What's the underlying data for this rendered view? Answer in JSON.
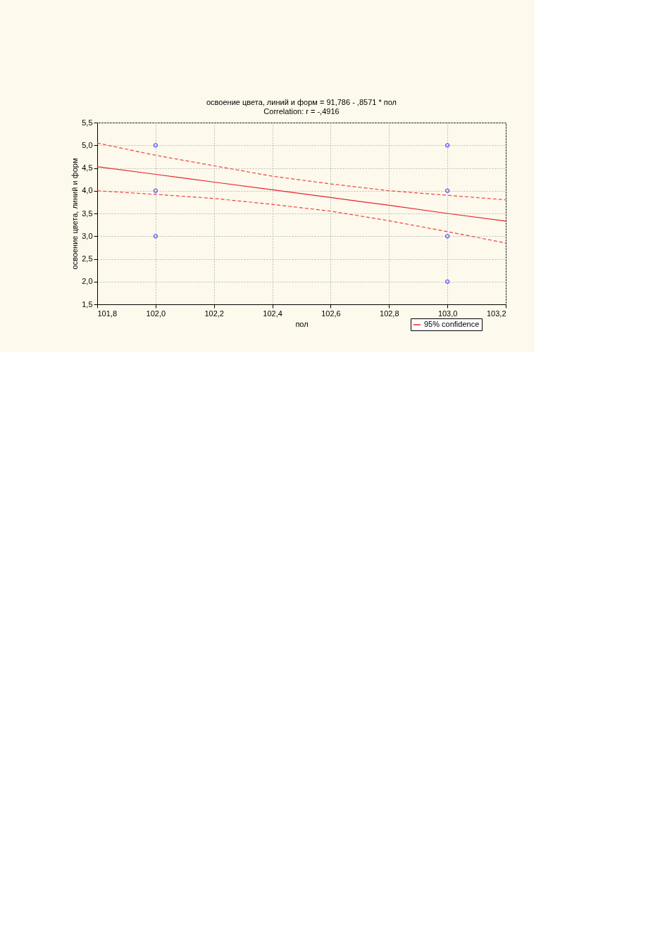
{
  "chart_data": {
    "type": "scatter",
    "title": "освоение цвета, линий и форм = 91,786 - ,8571  * пол",
    "subtitle": "Correlation: r = -,4916",
    "xlabel": "пол",
    "ylabel": "освоение цвета, линий и форм",
    "series": [
      {
        "color": "#0000ff",
        "marker": "circle",
        "x": [
          102.0,
          102.0,
          102.0,
          103.0,
          103.0,
          103.0,
          103.0
        ],
        "values": [
          5.0,
          4.0,
          3.0,
          5.0,
          4.0,
          3.0,
          2.0
        ]
      },
      {
        "type": "line",
        "name": "95% confidence",
        "color": "#e8242a",
        "line_style": "solid",
        "x": [
          101.8,
          102.0,
          102.2,
          102.4,
          102.6,
          102.8,
          103.0,
          103.2
        ],
        "values": [
          4.53,
          4.36,
          4.19,
          4.02,
          3.85,
          3.68,
          3.5,
          3.33
        ]
      },
      {
        "type": "line",
        "color": "#f04040",
        "line_style": "dashed",
        "x": [
          101.8,
          102.0,
          102.2,
          102.4,
          102.6,
          102.8,
          103.0,
          103.2
        ],
        "values": [
          5.05,
          4.78,
          4.55,
          4.32,
          4.15,
          4.0,
          3.9,
          3.8
        ]
      },
      {
        "type": "line",
        "color": "#f04040",
        "line_style": "dashed",
        "x": [
          101.8,
          102.0,
          102.2,
          102.4,
          102.6,
          102.8,
          103.0,
          103.2
        ],
        "values": [
          4.0,
          3.92,
          3.83,
          3.7,
          3.55,
          3.34,
          3.1,
          2.85
        ]
      }
    ],
    "xlim": [
      101.8,
      103.2
    ],
    "xticks": [
      {
        "value": 101.8,
        "label": "101,8"
      },
      {
        "value": 102.0,
        "label": "102,0"
      },
      {
        "value": 102.2,
        "label": "102,2"
      },
      {
        "value": 102.4,
        "label": "102,4"
      },
      {
        "value": 102.6,
        "label": "102,6"
      },
      {
        "value": 102.8,
        "label": "102,8"
      },
      {
        "value": 103.0,
        "label": "103,0"
      },
      {
        "value": 103.2,
        "label": "103,2"
      }
    ],
    "ylim": [
      1.5,
      5.5
    ],
    "yticks": [
      {
        "value": 1.5,
        "label": "1,5"
      },
      {
        "value": 2.0,
        "label": "2,0"
      },
      {
        "value": 2.5,
        "label": "2,5"
      },
      {
        "value": 3.0,
        "label": "3,0"
      },
      {
        "value": 3.5,
        "label": "3,5"
      },
      {
        "value": 4.0,
        "label": "4,0"
      },
      {
        "value": 4.5,
        "label": "4,5"
      },
      {
        "value": 5.0,
        "label": "5,0"
      },
      {
        "value": 5.5,
        "label": "5,5"
      }
    ],
    "grid": true,
    "legend": "bottom right"
  }
}
